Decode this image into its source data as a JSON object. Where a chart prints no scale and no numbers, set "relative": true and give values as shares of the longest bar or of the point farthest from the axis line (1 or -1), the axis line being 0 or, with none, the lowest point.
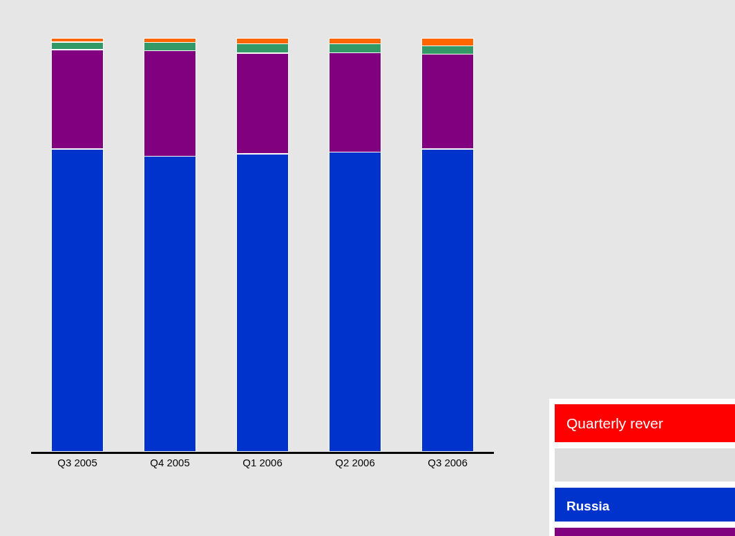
{
  "chart_data": {
    "type": "bar",
    "stacked": true,
    "relative": true,
    "legend": false,
    "categories": [
      "Q3 2005",
      "Q4 2005",
      "Q1 2006",
      "Q2 2006",
      "Q3 2006"
    ],
    "series": [
      {
        "name": "Russia",
        "color": "#0033cc",
        "values": [
          0.732,
          0.714,
          0.72,
          0.724,
          0.732
        ]
      },
      {
        "color": "#800080",
        "values": [
          0.24,
          0.255,
          0.243,
          0.24,
          0.229
        ]
      },
      {
        "color": "#339966",
        "values": [
          0.018,
          0.02,
          0.023,
          0.022,
          0.02
        ]
      },
      {
        "color": "#ff6600",
        "values": [
          0.01,
          0.011,
          0.013,
          0.013,
          0.018
        ]
      }
    ],
    "annotations": [
      "Quarterly rever"
    ]
  }
}
